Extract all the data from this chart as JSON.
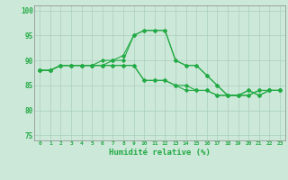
{
  "xlabel": "Humidité relative (%)",
  "xlim": [
    -0.5,
    23.5
  ],
  "ylim": [
    74,
    101
  ],
  "yticks": [
    75,
    80,
    85,
    90,
    95,
    100
  ],
  "xticks": [
    0,
    1,
    2,
    3,
    4,
    5,
    6,
    7,
    8,
    9,
    10,
    11,
    12,
    13,
    14,
    15,
    16,
    17,
    18,
    19,
    20,
    21,
    22,
    23
  ],
  "bg_color": "#cce8d8",
  "grid_color": "#aacfbc",
  "line_color": "#22aa44",
  "line1": [
    88,
    88,
    89,
    89,
    89,
    89,
    89,
    89,
    89,
    89,
    86,
    86,
    86,
    85,
    85,
    84,
    84,
    83,
    83,
    83,
    84,
    83,
    84,
    84
  ],
  "line2": [
    88,
    88,
    89,
    89,
    89,
    89,
    90,
    90,
    91,
    95,
    96,
    96,
    96,
    90,
    89,
    89,
    87,
    85,
    83,
    83,
    83,
    84,
    84,
    84
  ],
  "line3": [
    88,
    88,
    89,
    89,
    89,
    89,
    89,
    90,
    90,
    95,
    96,
    96,
    96,
    90,
    89,
    89,
    87,
    85,
    83,
    83,
    83,
    84,
    84,
    84
  ],
  "line4": [
    88,
    88,
    89,
    89,
    89,
    89,
    89,
    89,
    89,
    89,
    86,
    86,
    86,
    85,
    84,
    84,
    84,
    83,
    83,
    83,
    84,
    83,
    84,
    84
  ]
}
